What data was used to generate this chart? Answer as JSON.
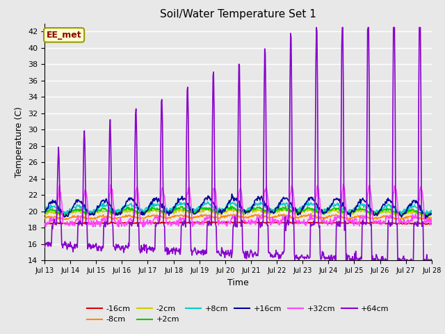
{
  "title": "Soil/Water Temperature Set 1",
  "xlabel": "Time",
  "ylabel": "Temperature (C)",
  "ylim": [
    14,
    43
  ],
  "yticks": [
    14,
    16,
    18,
    20,
    22,
    24,
    26,
    28,
    30,
    32,
    34,
    36,
    38,
    40,
    42
  ],
  "xlim": [
    0,
    15
  ],
  "xtick_labels": [
    "Jul 13",
    "Jul 14",
    "Jul 15",
    "Jul 16",
    "Jul 17",
    "Jul 18",
    "Jul 19",
    "Jul 20",
    "Jul 21",
    "Jul 22",
    "Jul 23",
    "Jul 24",
    "Jul 25",
    "Jul 26",
    "Jul 27",
    "Jul 28"
  ],
  "watermark_text": "EE_met",
  "watermark_bg": "#ffffcc",
  "watermark_border": "#999900",
  "watermark_fg": "#880000",
  "bg_color": "#e8e8e8",
  "plot_bg": "#e8e8e8",
  "grid_color": "#ffffff",
  "series": {
    "-16cm": {
      "color": "#dd0000",
      "lw": 1.2
    },
    "-8cm": {
      "color": "#ff8800",
      "lw": 1.2
    },
    "-2cm": {
      "color": "#cccc00",
      "lw": 1.2
    },
    "+2cm": {
      "color": "#00cc00",
      "lw": 1.2
    },
    "+8cm": {
      "color": "#00cccc",
      "lw": 1.2
    },
    "+16cm": {
      "color": "#000099",
      "lw": 1.2
    },
    "+32cm": {
      "color": "#ff44ff",
      "lw": 1.2
    },
    "+64cm": {
      "color": "#8800cc",
      "lw": 1.2
    }
  }
}
